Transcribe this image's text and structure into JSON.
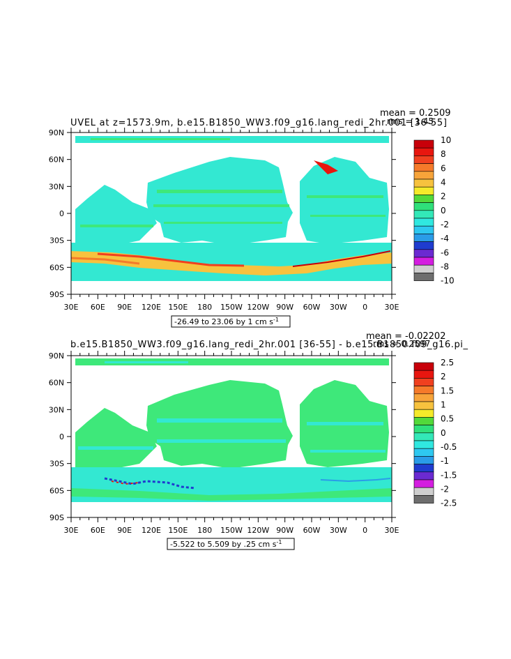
{
  "panels": [
    {
      "title": "UVEL at z=1573.9m, b.e15.B1850_WW3.f09_g16.lang_redi_2hr.001 [36-55]",
      "mean_text": "mean = 0.2509",
      "rms_text": "rms = 1.45",
      "range_text": "-26.49 to 23.06 by 1 cm s",
      "range_sup": "-1",
      "lat_labels": [
        "90N",
        "60N",
        "30N",
        "0",
        "30S",
        "60S",
        "90S"
      ],
      "lon_labels": [
        "30E",
        "60E",
        "90E",
        "120E",
        "150E",
        "180",
        "150W",
        "120W",
        "90W",
        "60W",
        "30W",
        "0",
        "30E"
      ],
      "colorbar_labels": [
        "10",
        "8",
        "6",
        "4",
        "2",
        "0",
        "-2",
        "-4",
        "-6",
        "-8",
        "-10"
      ]
    },
    {
      "title": "b.e15.B1850_WW3.f09_g16.lang_redi_2hr.001 [36-55] - b.e15.B1850.f09_g16.pi_",
      "mean_text": "mean = -0.02202",
      "rms_text": "rms = 0.2597",
      "range_text": "-5.522 to 5.509 by .25 cm s",
      "range_sup": "-1",
      "lat_labels": [
        "90N",
        "60N",
        "30N",
        "0",
        "30S",
        "60S",
        "90S"
      ],
      "lon_labels": [
        "30E",
        "60E",
        "90E",
        "120E",
        "150E",
        "180",
        "150W",
        "120W",
        "90W",
        "60W",
        "30W",
        "0",
        "30E"
      ],
      "colorbar_labels": [
        "2.5",
        "2",
        "1.5",
        "1",
        "0.5",
        "0",
        "-0.5",
        "-1",
        "-1.5",
        "-2",
        "-2.5"
      ]
    }
  ],
  "colors": {
    "colorbar_top_to_bottom": [
      "#c8000a",
      "#e8160f",
      "#f0401f",
      "#f57a2a",
      "#f7a43a",
      "#f7c23e",
      "#f5ea2a",
      "#52d93a",
      "#2fe07a",
      "#33e8b8",
      "#30e8e0",
      "#2ec8f0",
      "#2a9ce8",
      "#1f3ccf",
      "#6b2ad1",
      "#d41ee0",
      "#cfcfcf",
      "#6e6e6e"
    ],
    "ocean_main": "#33e8d2",
    "ocean_green": "#3ee87a",
    "land": "#ffffff"
  }
}
